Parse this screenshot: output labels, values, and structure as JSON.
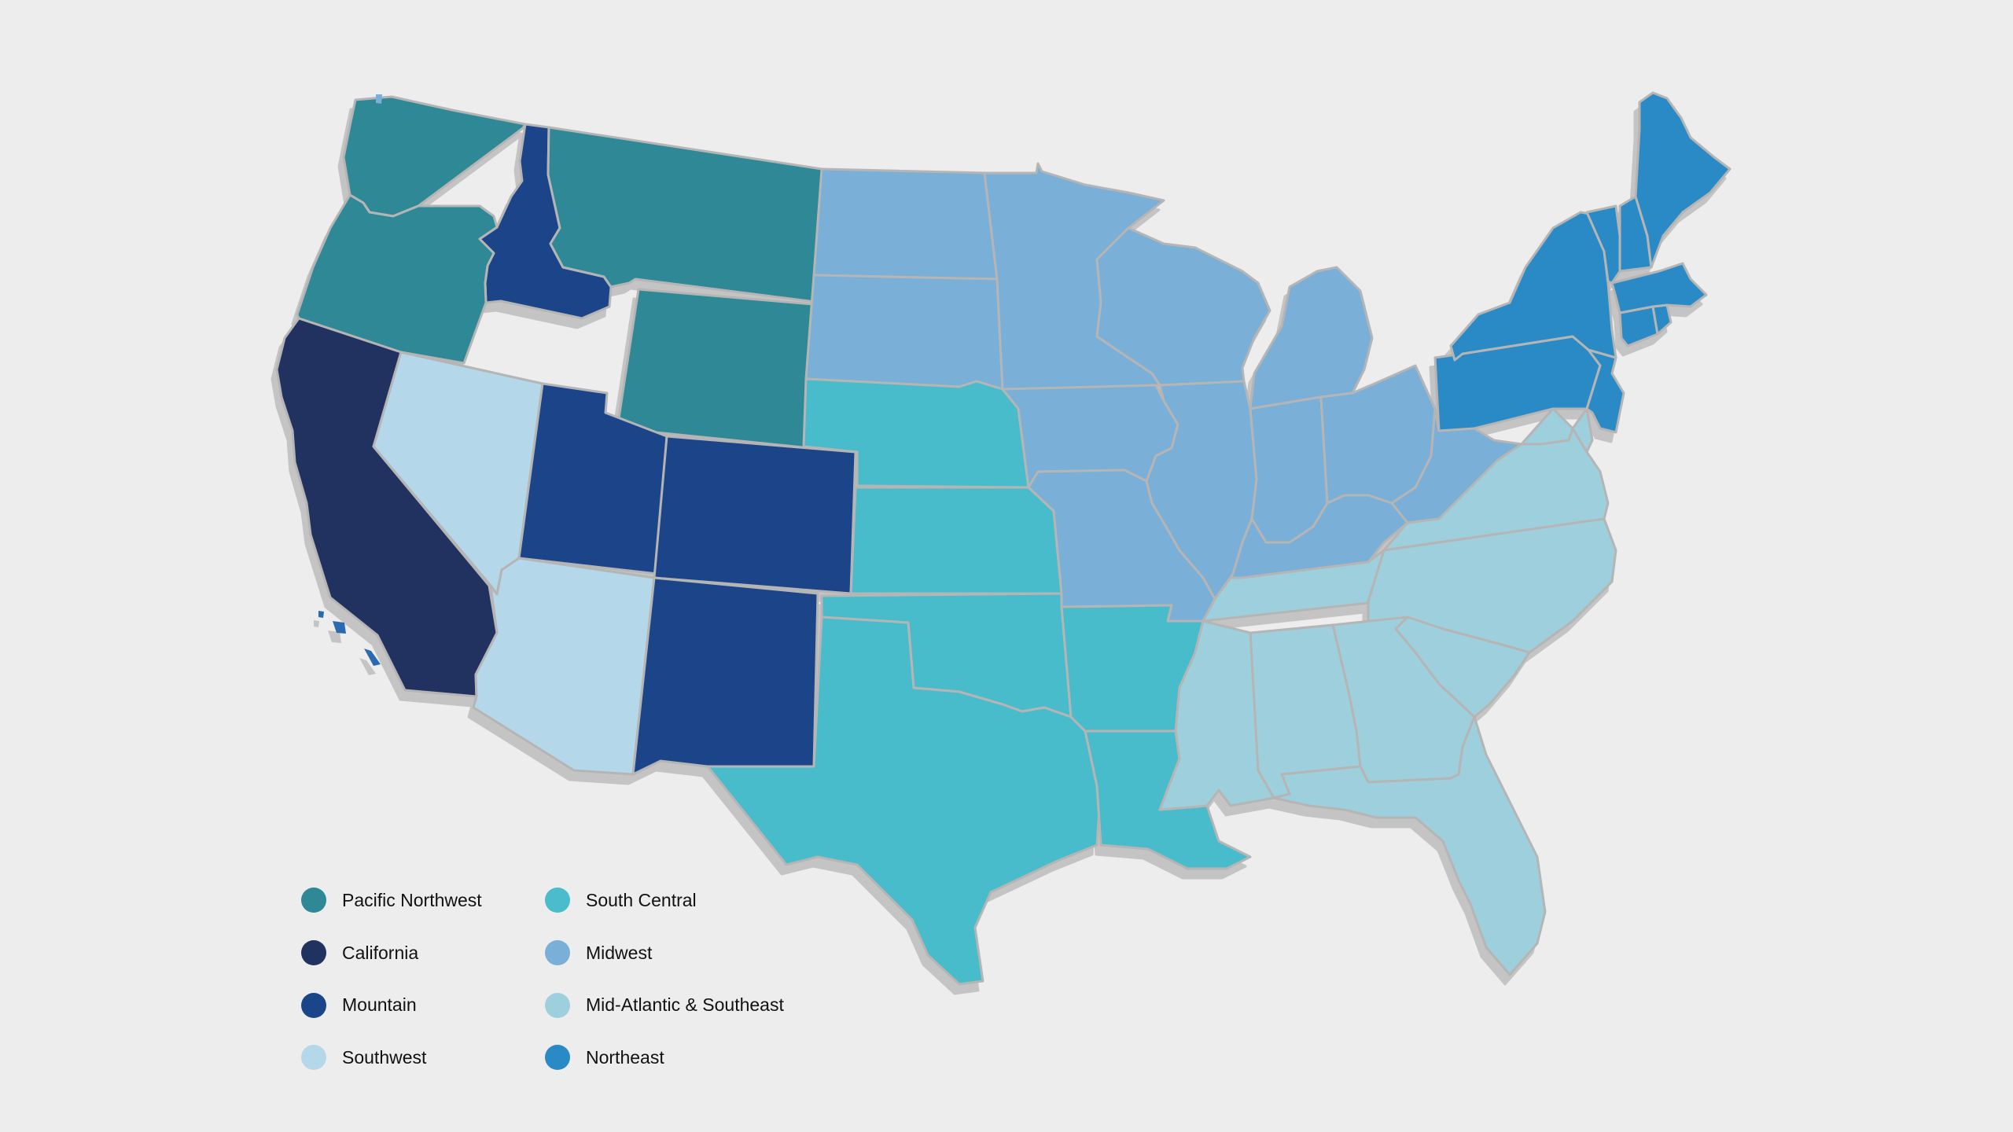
{
  "map": {
    "type": "choropleth",
    "base": "contiguous-united-states",
    "background_color": "#ededed",
    "border_color": "#b5b5b5",
    "shadow_color": "#c9c9c9"
  },
  "regions": [
    {
      "id": "pacific-northwest",
      "label": "Pacific Northwest",
      "color": "#2e8896",
      "states": [
        "WA",
        "OR",
        "MT",
        "WY"
      ]
    },
    {
      "id": "california",
      "label": "California",
      "color": "#203260",
      "states": [
        "CA"
      ]
    },
    {
      "id": "mountain",
      "label": "Mountain",
      "color": "#1b4589",
      "states": [
        "ID",
        "UT",
        "CO",
        "NM"
      ]
    },
    {
      "id": "southwest",
      "label": "Southwest",
      "color": "#b5d7ea",
      "states": [
        "NV",
        "AZ"
      ]
    },
    {
      "id": "south-central",
      "label": "South Central",
      "color": "#4abccb",
      "states": [
        "NE",
        "KS",
        "OK",
        "TX",
        "AR",
        "LA"
      ]
    },
    {
      "id": "midwest",
      "label": "Midwest",
      "color": "#7aafd8",
      "states": [
        "ND",
        "SD",
        "MN",
        "IA",
        "MO",
        "WI",
        "IL",
        "MI",
        "IN",
        "OH",
        "KY",
        "WV"
      ]
    },
    {
      "id": "mid-atlantic-southeast",
      "label": "Mid-Atlantic & Southeast",
      "color": "#9dd0dc",
      "states": [
        "VA",
        "MD",
        "DE",
        "NC",
        "SC",
        "TN",
        "MS",
        "AL",
        "GA",
        "FL"
      ]
    },
    {
      "id": "northeast",
      "label": "Northeast",
      "color": "#2a8ac6",
      "states": [
        "PA",
        "NJ",
        "NY",
        "CT",
        "RI",
        "MA",
        "VT",
        "NH",
        "ME"
      ]
    }
  ]
}
